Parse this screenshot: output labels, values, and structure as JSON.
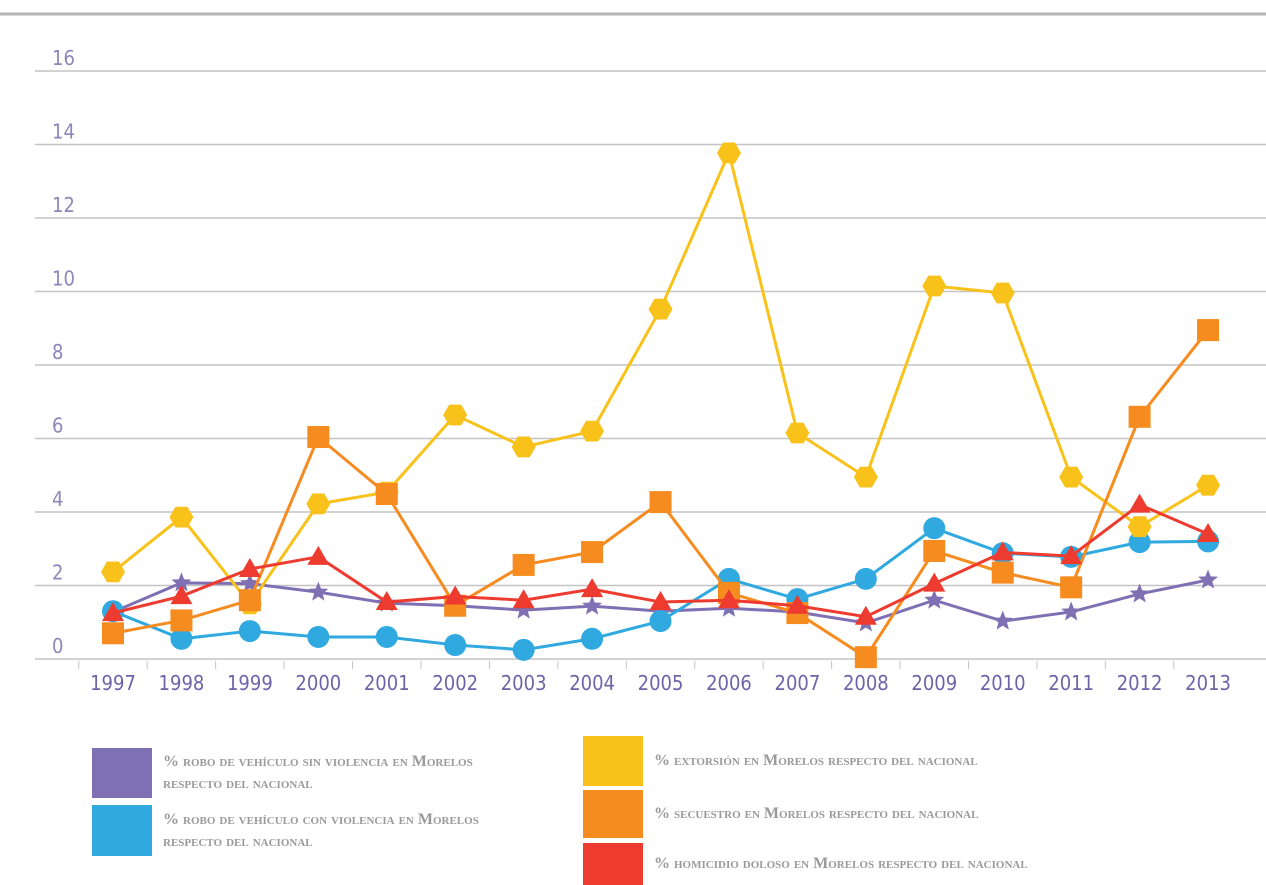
{
  "chart_data": {
    "type": "line",
    "categories": [
      "1997",
      "1998",
      "1999",
      "2000",
      "2001",
      "2002",
      "2003",
      "2004",
      "2005",
      "2006",
      "2007",
      "2008",
      "2009",
      "2010",
      "2011",
      "2012",
      "2013"
    ],
    "ylim": [
      0,
      16
    ],
    "yticks": [
      0,
      2,
      4,
      6,
      8,
      10,
      12,
      14,
      16
    ],
    "grid": true,
    "series": [
      {
        "name": "% robo de vehículo sin violencia en Morelos respecto del nacional",
        "color": "#7f6fb3",
        "marker": "star",
        "values": [
          1.28,
          2.07,
          2.05,
          1.82,
          1.52,
          1.45,
          1.33,
          1.44,
          1.3,
          1.38,
          1.28,
          0.98,
          1.6,
          1.03,
          1.28,
          1.77,
          2.15
        ]
      },
      {
        "name": "% robo de vehículo con violencia en Morelos respecto del nacional",
        "color": "#2fa9e0",
        "marker": "circle",
        "values": [
          1.3,
          0.55,
          0.76,
          0.6,
          0.6,
          0.38,
          0.25,
          0.55,
          1.03,
          2.18,
          1.63,
          2.18,
          3.56,
          2.88,
          2.78,
          3.18,
          3.2
        ]
      },
      {
        "name": "% extorsión en Morelos respecto del nacional",
        "color": "#f9c21a",
        "marker": "hexagon",
        "values": [
          2.37,
          3.86,
          1.5,
          4.22,
          4.54,
          6.64,
          5.77,
          6.2,
          9.52,
          13.77,
          6.15,
          4.95,
          10.15,
          9.96,
          4.95,
          3.6,
          4.73
        ]
      },
      {
        "name": "% secuestro en Morelos respecto del nacional",
        "color": "#f68b1f",
        "marker": "square",
        "values": [
          0.7,
          1.05,
          1.6,
          6.04,
          4.49,
          1.45,
          2.56,
          2.91,
          4.27,
          1.8,
          1.25,
          0.05,
          2.94,
          2.35,
          1.95,
          6.59,
          8.95
        ]
      },
      {
        "name": "% homicidio doloso en Morelos respecto del nacional",
        "color": "#ee3b2f",
        "marker": "triangle",
        "values": [
          1.25,
          1.71,
          2.45,
          2.78,
          1.55,
          1.7,
          1.6,
          1.9,
          1.55,
          1.6,
          1.45,
          1.15,
          2.05,
          2.9,
          2.8,
          4.2,
          3.4
        ]
      }
    ]
  }
}
